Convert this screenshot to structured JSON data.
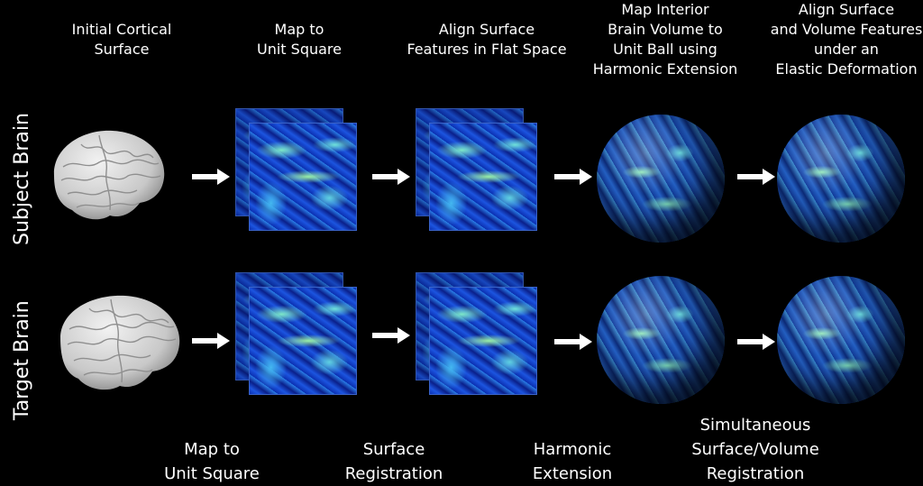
{
  "headers": [
    "Initial Cortical\nSurface",
    "Map to\nUnit Square",
    "Align Surface\nFeatures in Flat Space",
    "Map Interior\nBrain Volume to\nUnit Ball using\nHarmonic Extension",
    "Align Surface\nand Volume Features\nunder an\nElastic Deformation"
  ],
  "row_labels": [
    "Subject  Brain",
    "Target Brain"
  ],
  "footers": [
    "Map to\nUnit Square",
    "Surface\nRegistration",
    "Harmonic\nExtension",
    "Simultaneous\nSurface/Volume\nRegistration"
  ],
  "colors": {
    "background": "#000000",
    "text": "#ffffff",
    "arrow": "#ffffff",
    "brain": "#d8d8d8"
  }
}
